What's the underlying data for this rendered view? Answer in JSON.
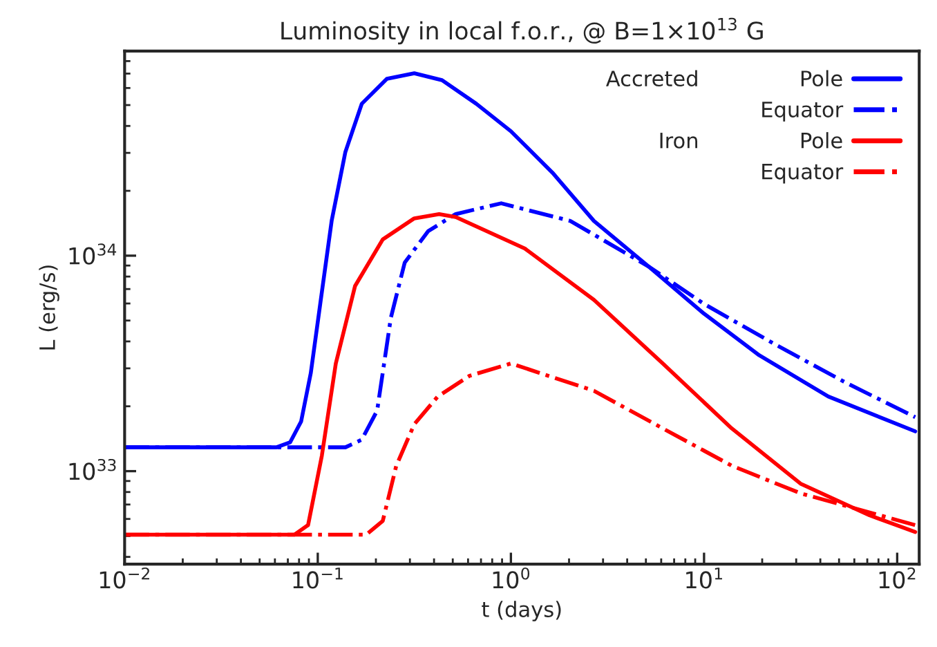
{
  "chart_data": {
    "type": "line",
    "title": "Luminosity in local f.o.r., @ B=1×10$^{13}$ G",
    "xlabel": "t (days)",
    "ylabel": "L (erg/s)",
    "log": "xy",
    "grid": false,
    "legend": "top right",
    "marker": "none",
    "xlim": [
      0.01,
      130
    ],
    "ylim": [
      3.7e+32,
      8.9e+34
    ],
    "xticks": [
      {
        "value": 0.01,
        "label": "10$^{−2}$"
      },
      {
        "value": 0.1,
        "label": "10$^{−1}$"
      },
      {
        "value": 1,
        "label": "10$^{0}$"
      },
      {
        "value": 10,
        "label": "10$^{1}$"
      },
      {
        "value": 100,
        "label": "10$^{2}$"
      }
    ],
    "yticks": [
      {
        "value": 1e+33,
        "label": "10$^{33}$"
      },
      {
        "value": 1e+34,
        "label": "10$^{34}$"
      }
    ],
    "annotations": [
      "Accreted",
      "Iron"
    ],
    "series": [
      {
        "name": "Pole",
        "color": "#0000ff",
        "line_style": "solid",
        "x": [
          0.01,
          0.0611,
          0.0719,
          0.082,
          0.092,
          0.103,
          0.118,
          0.139,
          0.169,
          0.228,
          0.316,
          0.44,
          0.662,
          1.0,
          1.64,
          2.69,
          5.18,
          10,
          19.3,
          44.0,
          124
        ],
        "values": [
          1.29e+33,
          1.29e+33,
          1.36e+33,
          1.7e+33,
          2.85e+33,
          5.97e+33,
          1.45e+34,
          3.03e+34,
          5.07e+34,
          6.62e+34,
          7.02e+34,
          6.52e+34,
          5.07e+34,
          3.78e+34,
          2.43e+34,
          1.45e+34,
          8.89e+33,
          5.38e+33,
          3.45e+33,
          2.22e+33,
          1.53e+33
        ]
      },
      {
        "name": "Equator",
        "color": "#0000ff",
        "line_style": "dashdot",
        "x": [
          0.01,
          0.139,
          0.169,
          0.203,
          0.239,
          0.282,
          0.373,
          0.518,
          0.891,
          2.03,
          5.18,
          10.0,
          23.9,
          54.4,
          124
        ],
        "values": [
          1.29e+33,
          1.29e+33,
          1.4e+33,
          1.91e+33,
          5.15e+33,
          9.29e+33,
          1.3e+34,
          1.56e+34,
          1.75e+34,
          1.45e+34,
          8.89e+33,
          5.97e+33,
          3.83e+33,
          2.57e+33,
          1.78e+33
        ]
      },
      {
        "name": "Pole",
        "color": "#ff0000",
        "line_style": "solid",
        "x": [
          0.01,
          0.0757,
          0.0891,
          0.105,
          0.124,
          0.156,
          0.217,
          0.316,
          0.425,
          0.518,
          1.18,
          2.69,
          6.11,
          13.9,
          31.6,
          71.9,
          124
        ],
        "values": [
          5.07e+32,
          5.07e+32,
          5.62e+32,
          1.18e+33,
          3.16e+33,
          7.23e+33,
          1.19e+34,
          1.49e+34,
          1.56e+34,
          1.51e+34,
          1.08e+34,
          6.24e+33,
          3.16e+33,
          1.58e+33,
          8.75e+32,
          6.24e+32,
          5.22e+32
        ]
      },
      {
        "name": "Equator",
        "color": "#ff0000",
        "line_style": "dashdot",
        "x": [
          0.01,
          0.178,
          0.217,
          0.255,
          0.316,
          0.418,
          0.611,
          1.0,
          2.69,
          6.11,
          13.9,
          31.6,
          124
        ],
        "values": [
          5.07e+32,
          5.07e+32,
          5.87e+32,
          1.06e+33,
          1.65e+33,
          2.22e+33,
          2.77e+33,
          3.16e+33,
          2.36e+33,
          1.58e+33,
          1.06e+33,
          7.89e+32,
          5.62e+32
        ]
      }
    ]
  }
}
